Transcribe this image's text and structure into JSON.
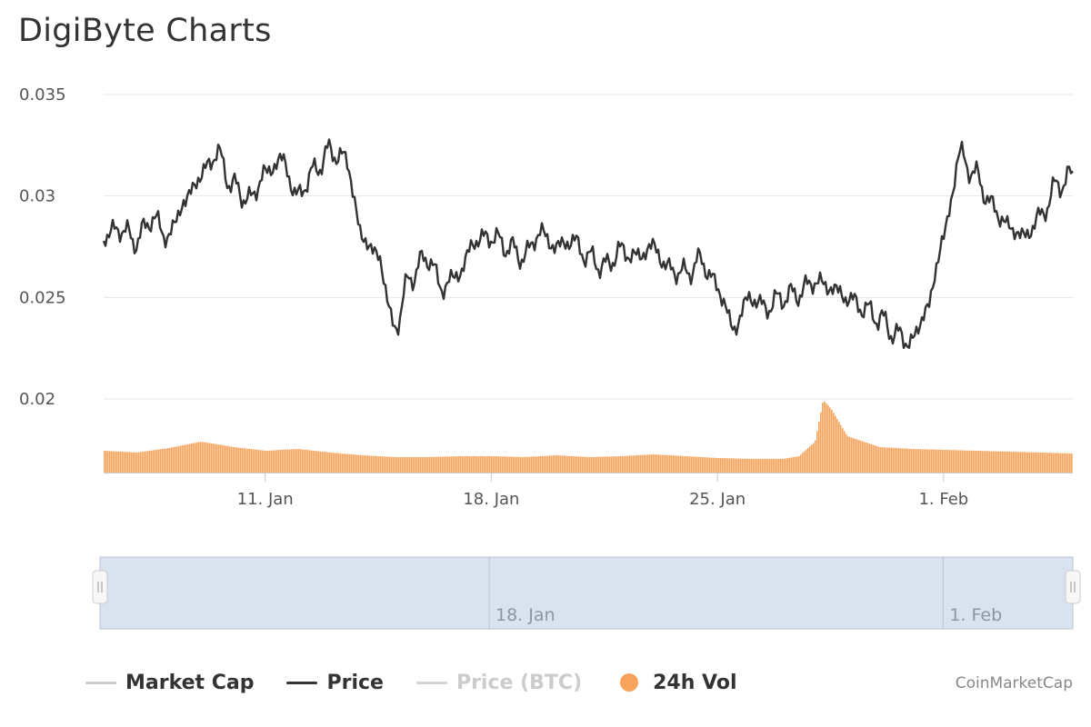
{
  "page": {
    "title": "DigiByte Charts",
    "credit": "CoinMarketCap"
  },
  "colors": {
    "price": "#333333",
    "volume": "#f7a35c",
    "market_cap": "#cccccc",
    "price_btc": "#d3d3d3",
    "grid": "#e6e6e6",
    "navigator_fill": "#d9e2ef",
    "navigator_border": "#b7c3d3"
  },
  "legend": [
    {
      "label": "Market Cap",
      "color": "#cccccc",
      "text_color": "#333333",
      "shape": "line"
    },
    {
      "label": "Price",
      "color": "#333333",
      "text_color": "#333333",
      "shape": "line"
    },
    {
      "label": "Price (BTC)",
      "color": "#d3d3d3",
      "text_color": "#cccccc",
      "shape": "line"
    },
    {
      "label": "24h Vol",
      "color": "#f7a35c",
      "text_color": "#333333",
      "shape": "circle"
    }
  ],
  "navigator": {
    "labels": [
      "18. Jan",
      "1. Feb"
    ]
  },
  "chart_data": {
    "type": "line",
    "x_range": [
      "2018-01-06",
      "2018-02-05"
    ],
    "x_ticks": [
      "11. Jan",
      "18. Jan",
      "25. Jan",
      "1. Feb"
    ],
    "y_ticks": [
      "0.02",
      "0.025",
      "0.03",
      "0.035"
    ],
    "ylim": [
      0.02,
      0.035
    ],
    "grid": true,
    "legend_position": "bottom",
    "series": [
      {
        "name": "Price",
        "x": [
          "2018-01-06",
          "2018-01-06 12:00",
          "2018-01-07",
          "2018-01-07 12:00",
          "2018-01-08",
          "2018-01-08 12:00",
          "2018-01-09",
          "2018-01-09 12:00",
          "2018-01-10",
          "2018-01-10 12:00",
          "2018-01-11",
          "2018-01-11 12:00",
          "2018-01-12",
          "2018-01-12 12:00",
          "2018-01-13",
          "2018-01-13 12:00",
          "2018-01-14",
          "2018-01-14 12:00",
          "2018-01-15",
          "2018-01-15 12:00",
          "2018-01-16",
          "2018-01-16 12:00",
          "2018-01-17",
          "2018-01-17 12:00",
          "2018-01-18",
          "2018-01-18 12:00",
          "2018-01-19",
          "2018-01-19 12:00",
          "2018-01-20",
          "2018-01-20 12:00",
          "2018-01-21",
          "2018-01-21 12:00",
          "2018-01-22",
          "2018-01-22 12:00",
          "2018-01-23",
          "2018-01-23 12:00",
          "2018-01-24",
          "2018-01-24 12:00",
          "2018-01-25",
          "2018-01-25 12:00",
          "2018-01-26",
          "2018-01-26 12:00",
          "2018-01-27",
          "2018-01-27 12:00",
          "2018-01-28",
          "2018-01-28 12:00",
          "2018-01-29",
          "2018-01-29 12:00",
          "2018-01-30",
          "2018-01-30 12:00",
          "2018-01-31",
          "2018-01-31 12:00",
          "2018-02-01",
          "2018-02-01 12:00",
          "2018-02-02",
          "2018-02-02 12:00",
          "2018-02-03",
          "2018-02-03 12:00",
          "2018-02-04",
          "2018-02-04 12:00",
          "2018-02-05"
        ],
        "values": [
          0.028,
          0.0284,
          0.0278,
          0.0289,
          0.028,
          0.0297,
          0.031,
          0.0321,
          0.0305,
          0.0298,
          0.0311,
          0.0318,
          0.03,
          0.0312,
          0.0322,
          0.0318,
          0.028,
          0.027,
          0.0235,
          0.026,
          0.027,
          0.0255,
          0.0262,
          0.0278,
          0.028,
          0.0275,
          0.027,
          0.0282,
          0.0275,
          0.0278,
          0.027,
          0.0265,
          0.0273,
          0.027,
          0.0275,
          0.0264,
          0.0262,
          0.0268,
          0.0255,
          0.0235,
          0.025,
          0.0245,
          0.025,
          0.0252,
          0.0258,
          0.0255,
          0.025,
          0.0245,
          0.024,
          0.0232,
          0.0228,
          0.0245,
          0.028,
          0.032,
          0.031,
          0.0295,
          0.0285,
          0.028,
          0.029,
          0.0305,
          0.031
        ]
      },
      {
        "name": "24h Vol",
        "x": [
          "2018-01-06",
          "2018-01-07",
          "2018-01-08",
          "2018-01-09",
          "2018-01-10",
          "2018-01-11",
          "2018-01-12",
          "2018-01-13",
          "2018-01-14",
          "2018-01-15",
          "2018-01-16",
          "2018-01-17",
          "2018-01-18",
          "2018-01-19",
          "2018-01-20",
          "2018-01-21",
          "2018-01-22",
          "2018-01-23",
          "2018-01-24",
          "2018-01-25",
          "2018-01-26",
          "2018-01-27",
          "2018-01-27 12:00",
          "2018-01-28",
          "2018-01-28 06:00",
          "2018-01-28 12:00",
          "2018-01-29",
          "2018-01-30",
          "2018-01-31",
          "2018-02-01",
          "2018-02-02",
          "2018-02-03",
          "2018-02-04",
          "2018-02-05"
        ],
        "values": [
          24,
          22,
          27,
          34,
          28,
          24,
          26,
          22,
          19,
          17,
          17,
          18,
          18,
          17,
          19,
          17,
          18,
          20,
          18,
          16,
          15,
          15,
          18,
          34,
          80,
          70,
          40,
          28,
          26,
          25,
          24,
          23,
          22,
          21
        ]
      }
    ]
  }
}
